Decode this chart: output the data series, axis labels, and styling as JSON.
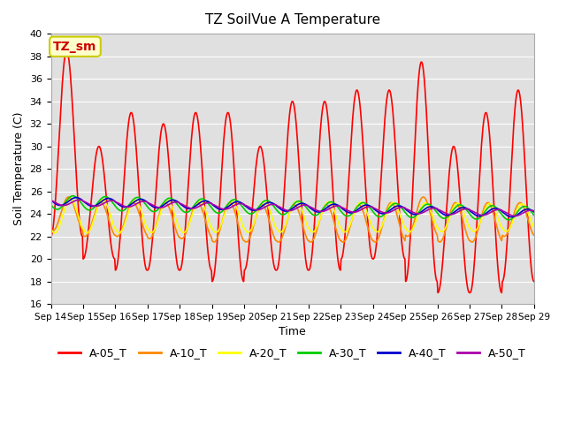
{
  "title": "TZ SoilVue A Temperature",
  "xlabel": "Time",
  "ylabel": "Soil Temperature (C)",
  "ylim": [
    16,
    40
  ],
  "yticks": [
    16,
    18,
    20,
    22,
    24,
    26,
    28,
    30,
    32,
    34,
    36,
    38,
    40
  ],
  "annotation_label": "TZ_sm",
  "annotation_color": "#cc0000",
  "annotation_bg": "#ffffcc",
  "annotation_border": "#cccc00",
  "background_color": "#e0e0e0",
  "series": {
    "A-05_T": {
      "color": "#ff0000",
      "lw": 1.2
    },
    "A-10_T": {
      "color": "#ff8800",
      "lw": 1.2
    },
    "A-20_T": {
      "color": "#ffff00",
      "lw": 1.2
    },
    "A-30_T": {
      "color": "#00cc00",
      "lw": 1.2
    },
    "A-40_T": {
      "color": "#0000cc",
      "lw": 1.2
    },
    "A-50_T": {
      "color": "#aa00aa",
      "lw": 1.2
    }
  },
  "x_labels": [
    "Sep 14",
    "Sep 15",
    "Sep 16",
    "Sep 17",
    "Sep 18",
    "Sep 19",
    "Sep 20",
    "Sep 21",
    "Sep 22",
    "Sep 23",
    "Sep 24",
    "Sep 25",
    "Sep 26",
    "Sep 27",
    "Sep 28",
    "Sep 29"
  ],
  "n_days": 15,
  "figsize": [
    6.4,
    4.8
  ],
  "dpi": 100,
  "peaks": [
    38.5,
    30,
    33,
    32,
    33,
    33,
    30,
    34,
    34,
    35,
    35,
    37.5,
    30,
    33,
    35
  ],
  "mins": [
    22,
    20,
    19,
    19,
    19,
    18,
    19,
    19,
    19,
    20,
    20,
    18,
    17,
    17,
    18
  ],
  "a10_peaks": [
    25.5,
    25.0,
    25.0,
    25.0,
    25.0,
    25.0,
    24.8,
    24.8,
    24.8,
    24.8,
    25.0,
    25.5,
    25.0,
    25.0,
    25.0
  ],
  "a10_mins": [
    22.5,
    22.0,
    22.0,
    21.8,
    21.8,
    21.5,
    21.5,
    21.5,
    21.5,
    21.5,
    21.5,
    22.0,
    21.5,
    21.5,
    22.0
  ]
}
